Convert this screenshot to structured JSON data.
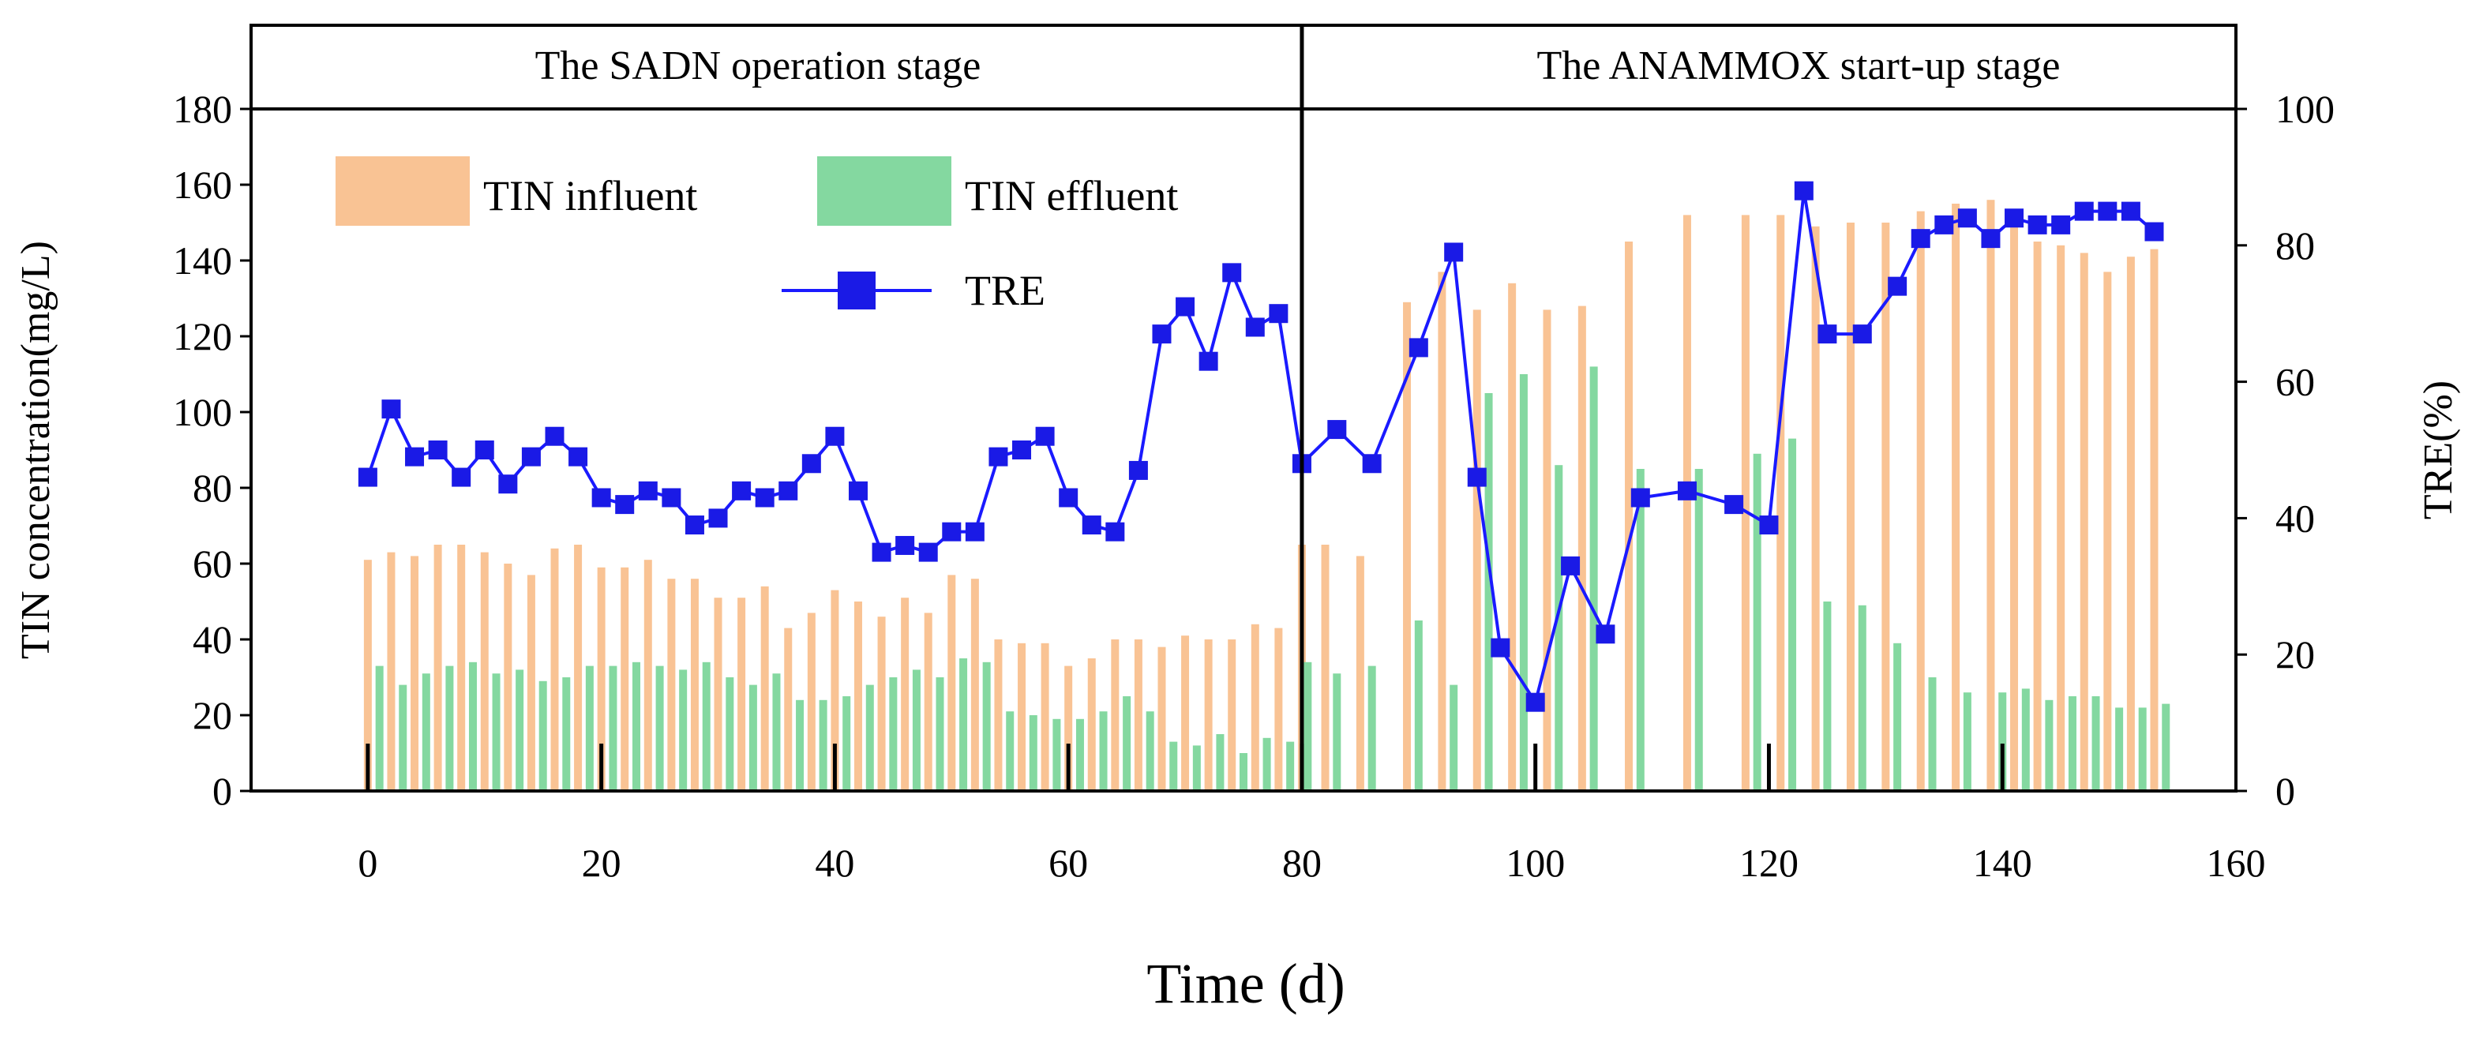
{
  "chart_data": {
    "type": "bar+line",
    "title": "",
    "xlabel": "Time (d)",
    "ylabel_left": "TIN concentration(mg/L)",
    "ylabel_right": "TRE(%)",
    "xlim": [
      -10,
      160
    ],
    "ylim_left": [
      0,
      180
    ],
    "ylim_right": [
      0,
      100
    ],
    "x_ticks": [
      0,
      20,
      40,
      60,
      80,
      100,
      120,
      140,
      160
    ],
    "y_left_ticks": [
      0,
      20,
      40,
      60,
      80,
      100,
      120,
      140,
      160,
      180
    ],
    "y_right_ticks": [
      0,
      20,
      40,
      60,
      80,
      100
    ],
    "stage_divider_x": 80,
    "stages": [
      {
        "label": "The SADN operation stage",
        "start": -10,
        "end": 80
      },
      {
        "label": "The ANAMMOX start-up stage",
        "start": 80,
        "end": 160
      }
    ],
    "colors": {
      "influent": "#f9c394",
      "effluent": "#84d8a0",
      "tre": "#1a1aff",
      "tre_marker": "#1a1ae6",
      "frame": "#000000"
    },
    "legend": {
      "influent": "TIN influent",
      "effluent": "TIN effluent",
      "tre": "TRE"
    },
    "series": [
      {
        "name": "TIN influent",
        "kind": "bar",
        "axis": "left",
        "x": [
          0,
          2,
          4,
          6,
          8,
          10,
          12,
          14,
          16,
          18,
          20,
          22,
          24,
          26,
          28,
          30,
          32,
          34,
          36,
          38,
          40,
          42,
          44,
          46,
          48,
          50,
          52,
          54,
          56,
          58,
          60,
          62,
          64,
          66,
          68,
          70,
          72,
          74,
          76,
          78,
          80,
          82,
          85,
          89,
          92,
          95,
          98,
          101,
          104,
          108,
          113,
          118,
          121,
          124,
          127,
          130,
          133,
          136,
          139,
          141,
          143,
          145,
          147,
          149,
          151,
          153
        ],
        "values": [
          61,
          63,
          62,
          65,
          65,
          63,
          60,
          57,
          64,
          65,
          59,
          59,
          61,
          56,
          56,
          51,
          51,
          54,
          43,
          47,
          53,
          50,
          46,
          51,
          47,
          57,
          56,
          40,
          39,
          39,
          33,
          35,
          40,
          40,
          38,
          41,
          40,
          40,
          44,
          43,
          65,
          65,
          62,
          129,
          137,
          127,
          134,
          127,
          128,
          145,
          152,
          152,
          152,
          149,
          150,
          150,
          153,
          155,
          156,
          152,
          145,
          144,
          142,
          137,
          141,
          143
        ]
      },
      {
        "name": "TIN effluent",
        "kind": "bar",
        "axis": "left",
        "x": [
          1,
          3,
          5,
          7,
          9,
          11,
          13,
          15,
          17,
          19,
          21,
          23,
          25,
          27,
          29,
          31,
          33,
          35,
          37,
          39,
          41,
          43,
          45,
          47,
          49,
          51,
          53,
          55,
          57,
          59,
          61,
          63,
          65,
          67,
          69,
          71,
          73,
          75,
          77,
          79,
          80.5,
          83,
          86,
          90,
          93,
          96,
          99,
          102,
          105,
          109,
          114,
          119,
          122,
          125,
          128,
          131,
          134,
          137,
          140,
          142,
          144,
          146,
          148,
          150,
          152,
          154
        ],
        "values": [
          33,
          28,
          31,
          33,
          34,
          31,
          32,
          29,
          30,
          33,
          33,
          34,
          33,
          32,
          34,
          30,
          28,
          31,
          24,
          24,
          25,
          28,
          30,
          32,
          30,
          35,
          34,
          21,
          20,
          19,
          19,
          21,
          25,
          21,
          13,
          12,
          15,
          10,
          14,
          13,
          34,
          31,
          33,
          45,
          28,
          105,
          110,
          86,
          112,
          85,
          85,
          89,
          93,
          50,
          49,
          39,
          30,
          26,
          26,
          27,
          24,
          25,
          25,
          22,
          22,
          23
        ]
      },
      {
        "name": "TRE",
        "kind": "line",
        "axis": "right",
        "x": [
          0,
          2,
          4,
          6,
          8,
          10,
          12,
          14,
          16,
          18,
          20,
          22,
          24,
          26,
          28,
          30,
          32,
          34,
          36,
          38,
          40,
          42,
          44,
          46,
          48,
          50,
          52,
          54,
          56,
          58,
          60,
          62,
          64,
          66,
          68,
          70,
          72,
          74,
          76,
          78,
          80,
          83,
          86,
          90,
          93,
          95,
          97,
          100,
          103,
          106,
          109,
          113,
          117,
          120,
          123,
          125,
          128,
          131,
          133,
          135,
          137,
          139,
          141,
          143,
          145,
          147,
          149,
          151,
          153
        ],
        "values": [
          46,
          56,
          49,
          50,
          46,
          50,
          45,
          49,
          52,
          49,
          43,
          42,
          44,
          43,
          39,
          40,
          44,
          43,
          44,
          48,
          52,
          44,
          35,
          36,
          35,
          38,
          38,
          49,
          50,
          52,
          43,
          39,
          38,
          47,
          67,
          71,
          63,
          76,
          68,
          70,
          48,
          53,
          48,
          65,
          79,
          46,
          21,
          13,
          33,
          23,
          43,
          44,
          42,
          39,
          88,
          67,
          67,
          74,
          81,
          83,
          84,
          81,
          84,
          83,
          83,
          85,
          85,
          85,
          82
        ]
      }
    ]
  }
}
